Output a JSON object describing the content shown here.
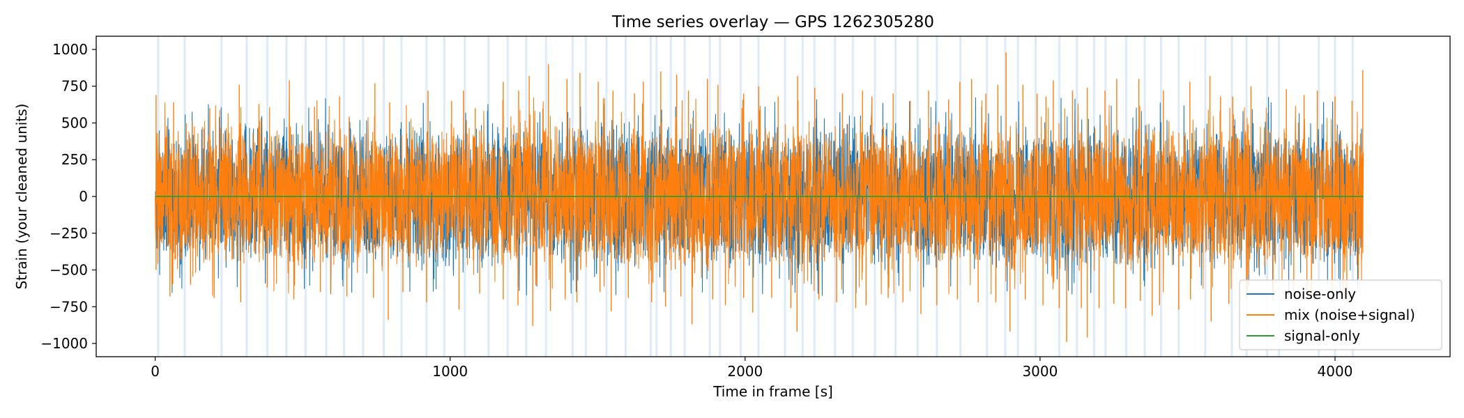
{
  "chart_data": {
    "type": "line",
    "title": "Time series overlay — GPS 1262305280",
    "xlabel": "Time in frame [s]",
    "ylabel": "Strain (your cleaned units)",
    "xlim": [
      -200,
      4390
    ],
    "ylim": [
      -1090,
      1090
    ],
    "xticks": [
      0,
      1000,
      2000,
      3000,
      4000
    ],
    "xtick_labels": [
      "0",
      "1000",
      "2000",
      "3000",
      "4000"
    ],
    "yticks": [
      1000,
      750,
      500,
      250,
      0,
      -250,
      -500,
      -750,
      -1000
    ],
    "ytick_labels": [
      "1000",
      "750",
      "500",
      "250",
      "0",
      "−250",
      "−500",
      "−750",
      "−1000"
    ],
    "grid": false,
    "legend_position": "lower-right",
    "series": [
      {
        "name": "noise-only",
        "color": "#1f77b4",
        "x_range": [
          0,
          4096
        ],
        "envelope": {
          "typical_amplitude": 500,
          "peak_amplitude": 990
        }
      },
      {
        "name": "mix (noise+signal)",
        "color": "#ff7f0e",
        "x_range": [
          0,
          4096
        ],
        "envelope": {
          "typical_amplitude": 500,
          "peak_amplitude": 990
        },
        "spikes_up": [
          [
            3,
            690
          ],
          [
            62,
            640
          ],
          [
            185,
            600
          ],
          [
            285,
            760
          ],
          [
            352,
            630
          ],
          [
            455,
            790
          ],
          [
            540,
            610
          ],
          [
            625,
            680
          ],
          [
            745,
            770
          ],
          [
            795,
            640
          ],
          [
            925,
            720
          ],
          [
            1005,
            650
          ],
          [
            1045,
            720
          ],
          [
            1085,
            600
          ],
          [
            1180,
            780
          ],
          [
            1232,
            720
          ],
          [
            1268,
            820
          ],
          [
            1333,
            900
          ],
          [
            1396,
            800
          ],
          [
            1440,
            840
          ],
          [
            1502,
            780
          ],
          [
            1552,
            720
          ],
          [
            1625,
            700
          ],
          [
            1655,
            780
          ],
          [
            1714,
            850
          ],
          [
            1768,
            830
          ],
          [
            1808,
            720
          ],
          [
            1872,
            800
          ],
          [
            1908,
            760
          ],
          [
            1995,
            700
          ],
          [
            2046,
            750
          ],
          [
            2112,
            680
          ],
          [
            2178,
            820
          ],
          [
            2236,
            740
          ],
          [
            2330,
            700
          ],
          [
            2398,
            720
          ],
          [
            2430,
            680
          ],
          [
            2502,
            700
          ],
          [
            2560,
            650
          ],
          [
            2622,
            720
          ],
          [
            2690,
            660
          ],
          [
            2728,
            780
          ],
          [
            2768,
            800
          ],
          [
            2816,
            700
          ],
          [
            2857,
            760
          ],
          [
            2885,
            980
          ],
          [
            2942,
            760
          ],
          [
            2990,
            700
          ],
          [
            3020,
            680
          ],
          [
            3045,
            790
          ],
          [
            3110,
            720
          ],
          [
            3160,
            740
          ],
          [
            3220,
            720
          ],
          [
            3260,
            800
          ],
          [
            3335,
            800
          ],
          [
            3418,
            720
          ],
          [
            3508,
            780
          ],
          [
            3576,
            820
          ],
          [
            3612,
            680
          ],
          [
            3653,
            680
          ],
          [
            3715,
            750
          ],
          [
            3835,
            730
          ],
          [
            3895,
            690
          ],
          [
            3940,
            720
          ],
          [
            4000,
            680
          ],
          [
            4058,
            650
          ],
          [
            4094,
            860
          ]
        ],
        "spikes_down": [
          [
            3,
            -500
          ],
          [
            50,
            -680
          ],
          [
            120,
            -600
          ],
          [
            200,
            -690
          ],
          [
            290,
            -720
          ],
          [
            380,
            -620
          ],
          [
            470,
            -700
          ],
          [
            560,
            -650
          ],
          [
            650,
            -680
          ],
          [
            740,
            -690
          ],
          [
            790,
            -840
          ],
          [
            840,
            -650
          ],
          [
            920,
            -720
          ],
          [
            1030,
            -770
          ],
          [
            1100,
            -660
          ],
          [
            1180,
            -700
          ],
          [
            1230,
            -740
          ],
          [
            1280,
            -880
          ],
          [
            1340,
            -780
          ],
          [
            1390,
            -700
          ],
          [
            1430,
            -720
          ],
          [
            1508,
            -650
          ],
          [
            1546,
            -780
          ],
          [
            1604,
            -690
          ],
          [
            1683,
            -720
          ],
          [
            1730,
            -750
          ],
          [
            1782,
            -680
          ],
          [
            1820,
            -870
          ],
          [
            1890,
            -700
          ],
          [
            1933,
            -740
          ],
          [
            1995,
            -690
          ],
          [
            2026,
            -790
          ],
          [
            2090,
            -690
          ],
          [
            2155,
            -760
          ],
          [
            2176,
            -920
          ],
          [
            2250,
            -700
          ],
          [
            2310,
            -720
          ],
          [
            2375,
            -760
          ],
          [
            2410,
            -740
          ],
          [
            2485,
            -690
          ],
          [
            2535,
            -720
          ],
          [
            2596,
            -800
          ],
          [
            2650,
            -740
          ],
          [
            2720,
            -700
          ],
          [
            2790,
            -720
          ],
          [
            2850,
            -720
          ],
          [
            2898,
            -920
          ],
          [
            2950,
            -700
          ],
          [
            3010,
            -740
          ],
          [
            3065,
            -760
          ],
          [
            3090,
            -990
          ],
          [
            3140,
            -760
          ],
          [
            3160,
            -960
          ],
          [
            3200,
            -760
          ],
          [
            3250,
            -730
          ],
          [
            3290,
            -760
          ],
          [
            3340,
            -710
          ],
          [
            3380,
            -810
          ],
          [
            3405,
            -740
          ],
          [
            3470,
            -770
          ],
          [
            3510,
            -700
          ],
          [
            3580,
            -850
          ],
          [
            3640,
            -730
          ],
          [
            3700,
            -700
          ],
          [
            3790,
            -710
          ],
          [
            3860,
            -680
          ],
          [
            3920,
            -700
          ],
          [
            3990,
            -720
          ],
          [
            4040,
            -720
          ],
          [
            4090,
            -430
          ]
        ]
      },
      {
        "name": "signal-only",
        "color": "#2ca02c",
        "x": [
          0,
          4096
        ],
        "y": [
          0,
          0
        ]
      }
    ],
    "shaded_bands_x": [
      10,
      100,
      225,
      310,
      380,
      445,
      510,
      580,
      640,
      705,
      775,
      835,
      920,
      980,
      1050,
      1130,
      1195,
      1258,
      1325,
      1415,
      1460,
      1530,
      1595,
      1680,
      1700,
      1748,
      1795,
      1880,
      1915,
      1985,
      2045,
      2135,
      2195,
      2235,
      2305,
      2365,
      2440,
      2510,
      2585,
      2650,
      2730,
      2820,
      2882,
      2925,
      2985,
      3065,
      3125,
      3183,
      3222,
      3292,
      3355,
      3410,
      3470,
      3560,
      3650,
      3700,
      3770,
      3810,
      3945,
      4000,
      4060
    ],
    "shaded_band_color": "#d8e8f5"
  }
}
